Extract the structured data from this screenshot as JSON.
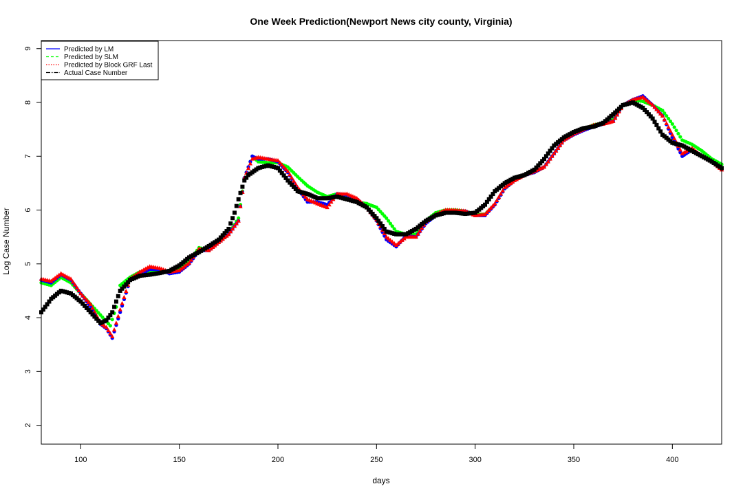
{
  "chart_data": {
    "type": "scatter",
    "title": "One Week Prediction(Newport News city county, Virginia)",
    "xlabel": "days",
    "ylabel": "Log Case Number",
    "xlim": [
      80,
      425
    ],
    "ylim": [
      1.65,
      9.15
    ],
    "x_ticks": [
      100,
      150,
      200,
      250,
      300,
      350,
      400
    ],
    "y_ticks": [
      2,
      3,
      4,
      5,
      6,
      7,
      8,
      9
    ],
    "grid": false,
    "legend": {
      "placement": "top-left",
      "entries": [
        {
          "label": "Predicted by LM",
          "color": "#0000ff",
          "line": "solid"
        },
        {
          "label": "Predicted by SLM",
          "color": "#00ff00",
          "line": "dashed"
        },
        {
          "label": "Predicted by Block GRF Last",
          "color": "#ff0000",
          "line": "dotted"
        },
        {
          "label": "Actual Case Number",
          "color": "#000000",
          "line": "dashdot"
        }
      ]
    },
    "series": [
      {
        "name": "Actual Case Number",
        "color": "#000000",
        "marker": "square",
        "x": [
          80,
          85,
          90,
          95,
          100,
          105,
          110,
          113,
          116,
          120,
          125,
          130,
          135,
          140,
          145,
          150,
          155,
          160,
          165,
          170,
          175,
          178,
          180,
          183,
          185,
          190,
          195,
          200,
          205,
          210,
          215,
          220,
          225,
          230,
          235,
          240,
          245,
          250,
          255,
          260,
          265,
          270,
          275,
          280,
          285,
          290,
          295,
          300,
          305,
          310,
          315,
          320,
          325,
          330,
          335,
          340,
          345,
          350,
          355,
          360,
          365,
          370,
          375,
          380,
          385,
          390,
          395,
          400,
          405,
          410,
          415,
          420,
          425
        ],
        "y": [
          4.1,
          4.35,
          4.5,
          4.45,
          4.3,
          4.1,
          3.9,
          3.95,
          4.1,
          4.5,
          4.7,
          4.78,
          4.8,
          4.83,
          4.87,
          4.97,
          5.12,
          5.22,
          5.33,
          5.45,
          5.65,
          5.95,
          6.2,
          6.55,
          6.65,
          6.78,
          6.83,
          6.78,
          6.55,
          6.35,
          6.3,
          6.22,
          6.22,
          6.25,
          6.2,
          6.15,
          6.05,
          5.85,
          5.6,
          5.55,
          5.55,
          5.65,
          5.8,
          5.9,
          5.95,
          5.95,
          5.93,
          5.95,
          6.1,
          6.35,
          6.5,
          6.6,
          6.65,
          6.75,
          6.95,
          7.2,
          7.35,
          7.45,
          7.52,
          7.55,
          7.62,
          7.78,
          7.95,
          8.0,
          7.9,
          7.7,
          7.4,
          7.25,
          7.2,
          7.1,
          7.0,
          6.9,
          6.78
        ]
      },
      {
        "name": "Predicted by LM",
        "color": "#0000ff",
        "marker": "circle",
        "x": [
          80,
          85,
          90,
          95,
          100,
          105,
          110,
          113,
          116,
          120,
          125,
          130,
          135,
          140,
          145,
          150,
          155,
          160,
          165,
          170,
          175,
          180,
          183,
          187,
          190,
          195,
          200,
          205,
          210,
          215,
          220,
          225,
          230,
          235,
          240,
          245,
          250,
          255,
          260,
          265,
          270,
          275,
          280,
          285,
          290,
          295,
          300,
          305,
          310,
          315,
          320,
          325,
          330,
          335,
          340,
          345,
          350,
          355,
          360,
          365,
          370,
          375,
          380,
          385,
          390,
          395,
          400,
          405,
          410,
          415,
          420,
          425
        ],
        "y": [
          4.7,
          4.65,
          4.8,
          4.7,
          4.45,
          4.2,
          3.88,
          3.8,
          3.62,
          4.1,
          4.7,
          4.8,
          4.9,
          4.9,
          4.82,
          4.85,
          5.0,
          5.25,
          5.25,
          5.4,
          5.55,
          5.8,
          6.6,
          7.0,
          6.95,
          6.95,
          6.9,
          6.7,
          6.4,
          6.15,
          6.15,
          6.1,
          6.3,
          6.28,
          6.2,
          6.05,
          5.8,
          5.45,
          5.32,
          5.52,
          5.5,
          5.75,
          5.9,
          5.98,
          5.98,
          5.98,
          5.9,
          5.9,
          6.1,
          6.4,
          6.55,
          6.65,
          6.7,
          6.8,
          7.05,
          7.3,
          7.4,
          7.48,
          7.55,
          7.6,
          7.65,
          7.95,
          8.05,
          8.12,
          7.95,
          7.75,
          7.35,
          7.0,
          7.12,
          7.0,
          6.9,
          6.75
        ]
      },
      {
        "name": "Predicted by SLM",
        "color": "#00ff00",
        "marker": "circle",
        "x": [
          80,
          85,
          90,
          95,
          100,
          105,
          110,
          115,
          118,
          120,
          125,
          130,
          135,
          140,
          145,
          150,
          155,
          160,
          165,
          170,
          175,
          180,
          183,
          187,
          190,
          195,
          200,
          205,
          210,
          215,
          220,
          225,
          230,
          235,
          240,
          245,
          250,
          255,
          260,
          265,
          270,
          275,
          280,
          285,
          290,
          295,
          300,
          305,
          310,
          315,
          320,
          325,
          330,
          335,
          340,
          345,
          350,
          355,
          360,
          365,
          370,
          375,
          380,
          385,
          390,
          395,
          400,
          405,
          410,
          415,
          420,
          425
        ],
        "y": [
          4.65,
          4.6,
          4.75,
          4.65,
          4.45,
          4.25,
          4.05,
          3.85,
          4.2,
          4.6,
          4.75,
          4.85,
          4.85,
          4.87,
          4.85,
          4.9,
          5.05,
          5.3,
          5.25,
          5.4,
          5.55,
          5.85,
          6.6,
          7.0,
          6.9,
          6.88,
          6.88,
          6.8,
          6.62,
          6.45,
          6.33,
          6.25,
          6.3,
          6.22,
          6.15,
          6.12,
          6.05,
          5.85,
          5.6,
          5.55,
          5.55,
          5.8,
          5.95,
          6.0,
          6.0,
          5.98,
          5.92,
          5.92,
          6.1,
          6.4,
          6.55,
          6.65,
          6.7,
          6.8,
          7.05,
          7.3,
          7.42,
          7.5,
          7.58,
          7.62,
          7.68,
          7.95,
          8.05,
          8.02,
          7.95,
          7.85,
          7.6,
          7.3,
          7.22,
          7.1,
          6.95,
          6.85
        ]
      },
      {
        "name": "Predicted by Block GRF Last",
        "color": "#ff0000",
        "marker": "triangle",
        "x": [
          80,
          85,
          90,
          95,
          100,
          105,
          110,
          113,
          116,
          120,
          125,
          130,
          135,
          140,
          145,
          150,
          155,
          160,
          165,
          170,
          175,
          180,
          183,
          187,
          190,
          195,
          200,
          205,
          210,
          215,
          220,
          225,
          230,
          235,
          240,
          245,
          250,
          255,
          260,
          265,
          270,
          275,
          280,
          285,
          290,
          295,
          300,
          305,
          310,
          315,
          320,
          325,
          330,
          335,
          340,
          345,
          350,
          355,
          360,
          365,
          370,
          375,
          380,
          385,
          390,
          395,
          400,
          405,
          410,
          415,
          420,
          425
        ],
        "y": [
          4.72,
          4.68,
          4.82,
          4.72,
          4.45,
          4.25,
          3.9,
          3.82,
          3.65,
          4.15,
          4.72,
          4.85,
          4.95,
          4.92,
          4.85,
          4.88,
          5.02,
          5.28,
          5.25,
          5.4,
          5.55,
          5.8,
          6.6,
          6.95,
          6.98,
          6.95,
          6.92,
          6.72,
          6.42,
          6.2,
          6.12,
          6.05,
          6.3,
          6.3,
          6.22,
          6.05,
          5.82,
          5.5,
          5.35,
          5.5,
          5.5,
          5.78,
          5.92,
          6.0,
          6.0,
          5.98,
          5.9,
          5.92,
          6.12,
          6.42,
          6.55,
          6.65,
          6.72,
          6.8,
          7.05,
          7.3,
          7.42,
          7.5,
          7.58,
          7.6,
          7.65,
          7.95,
          8.05,
          8.1,
          7.95,
          7.75,
          7.4,
          7.05,
          7.15,
          7.0,
          6.9,
          6.75
        ]
      }
    ]
  }
}
